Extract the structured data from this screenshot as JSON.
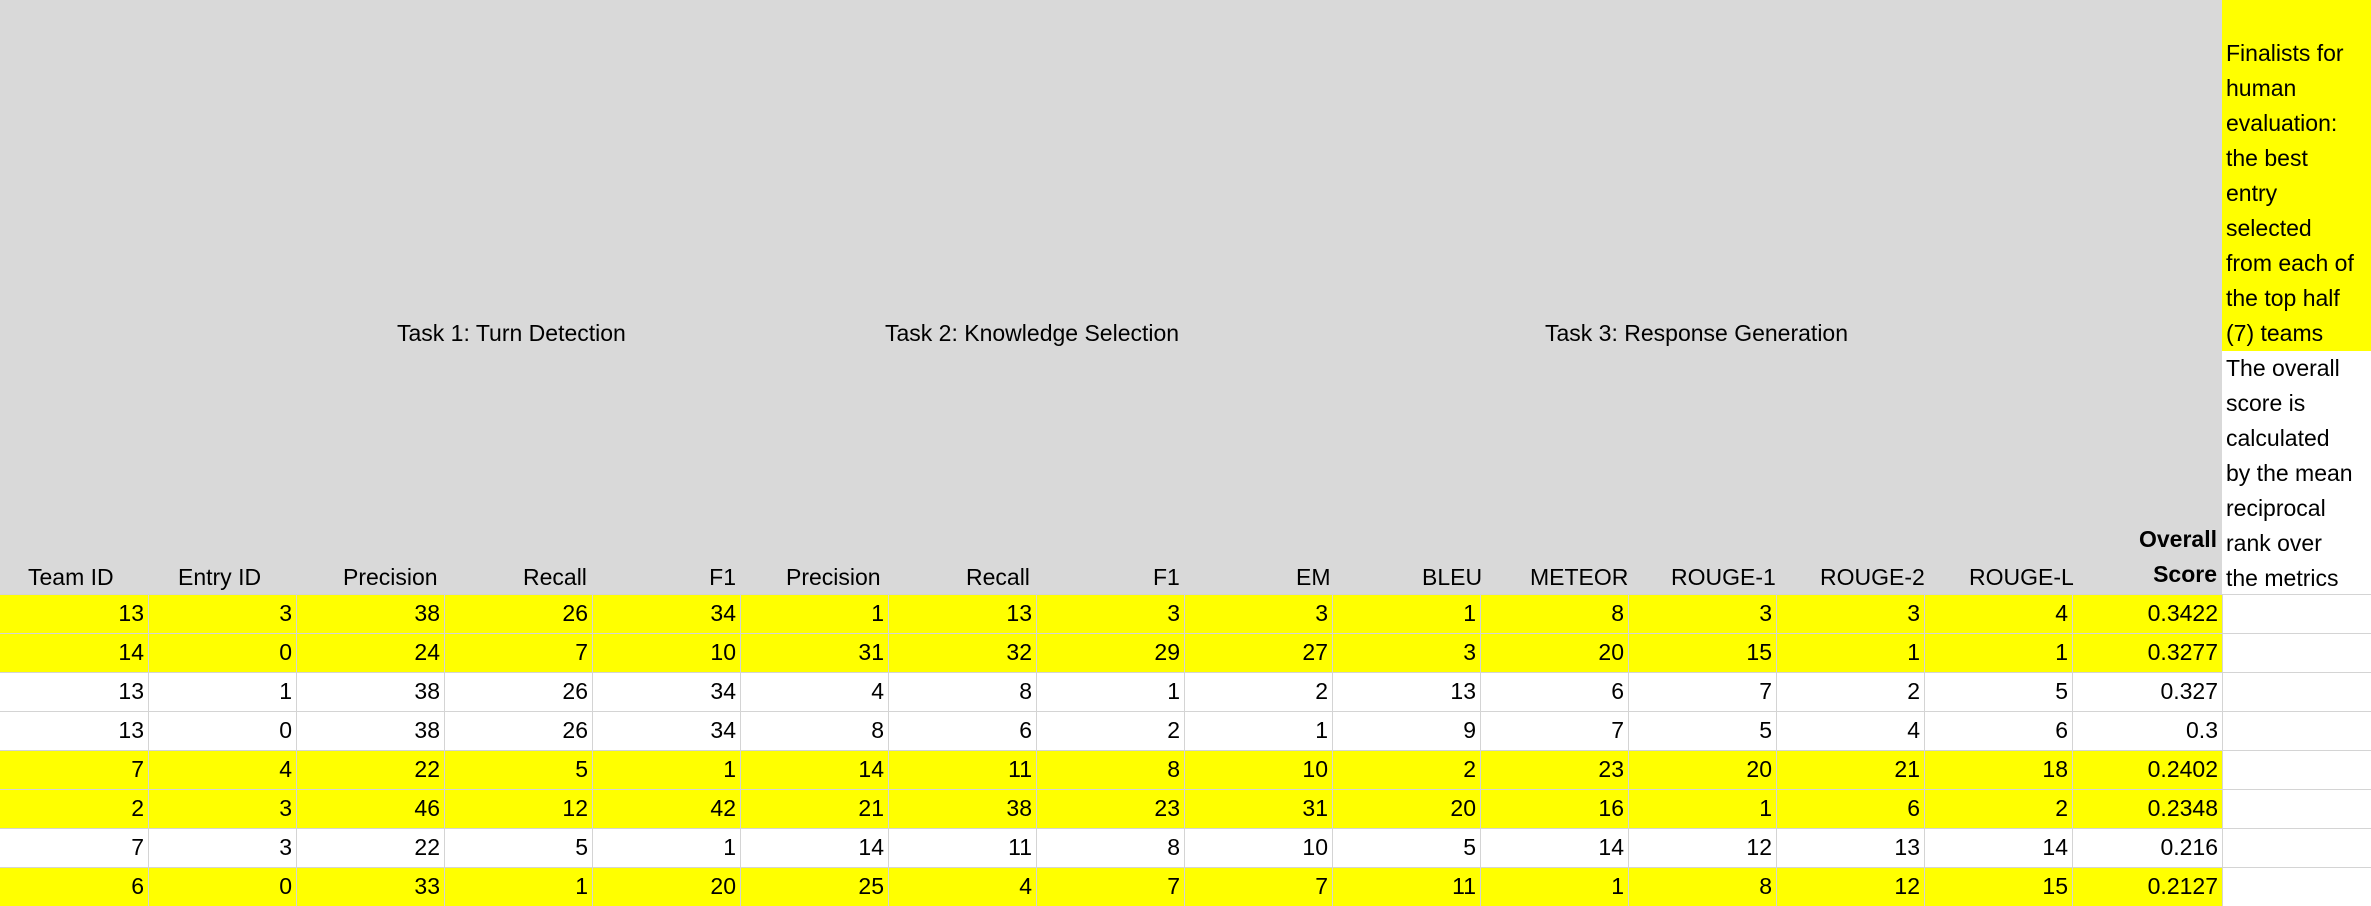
{
  "tasks": {
    "task1": "Task 1: Turn Detection",
    "task2": "Task 2: Knowledge Selection",
    "task3": "Task 3: Response Generation"
  },
  "columns": {
    "team_id": "Team ID",
    "entry_id": "Entry ID",
    "t1_precision": "Precision",
    "t1_recall": "Recall",
    "t1_f1": "F1",
    "t2_precision": "Precision",
    "t2_recall": "Recall",
    "t2_f1": "F1",
    "t2_em": "EM",
    "bleu": "BLEU",
    "meteor": "METEOR",
    "rouge1": "ROUGE-1",
    "rouge2": "ROUGE-2",
    "rougel": "ROUGE-L",
    "overall_line1": "Overall",
    "overall_line2": "Score"
  },
  "notes": {
    "finalists": [
      "Finalists for",
      "human",
      "evaluation:",
      "the best",
      "entry",
      "selected",
      "from each of",
      "the top half",
      "(7) teams"
    ],
    "overall": [
      "The overall",
      "score is",
      "calculated",
      "by the mean",
      "reciprocal",
      "rank over",
      "the metrics"
    ]
  },
  "colors": {
    "highlight": "#ffff00",
    "header_bg": "#d9d9d9",
    "grid": "#d4d4d4"
  },
  "rows": [
    {
      "highlight": true,
      "cells": [
        "13",
        "3",
        "38",
        "26",
        "34",
        "1",
        "13",
        "3",
        "3",
        "1",
        "8",
        "3",
        "3",
        "4",
        "0.3422"
      ]
    },
    {
      "highlight": true,
      "cells": [
        "14",
        "0",
        "24",
        "7",
        "10",
        "31",
        "32",
        "29",
        "27",
        "3",
        "20",
        "15",
        "1",
        "1",
        "0.3277"
      ]
    },
    {
      "highlight": false,
      "cells": [
        "13",
        "1",
        "38",
        "26",
        "34",
        "4",
        "8",
        "1",
        "2",
        "13",
        "6",
        "7",
        "2",
        "5",
        "0.327"
      ]
    },
    {
      "highlight": false,
      "cells": [
        "13",
        "0",
        "38",
        "26",
        "34",
        "8",
        "6",
        "2",
        "1",
        "9",
        "7",
        "5",
        "4",
        "6",
        "0.3"
      ]
    },
    {
      "highlight": true,
      "cells": [
        "7",
        "4",
        "22",
        "5",
        "1",
        "14",
        "11",
        "8",
        "10",
        "2",
        "23",
        "20",
        "21",
        "18",
        "0.2402"
      ]
    },
    {
      "highlight": true,
      "cells": [
        "2",
        "3",
        "46",
        "12",
        "42",
        "21",
        "38",
        "23",
        "31",
        "20",
        "16",
        "1",
        "6",
        "2",
        "0.2348"
      ]
    },
    {
      "highlight": false,
      "cells": [
        "7",
        "3",
        "22",
        "5",
        "1",
        "14",
        "11",
        "8",
        "10",
        "5",
        "14",
        "12",
        "13",
        "14",
        "0.216"
      ]
    },
    {
      "highlight": true,
      "cells": [
        "6",
        "0",
        "33",
        "1",
        "20",
        "25",
        "4",
        "7",
        "7",
        "11",
        "1",
        "8",
        "12",
        "15",
        "0.2127"
      ]
    }
  ]
}
